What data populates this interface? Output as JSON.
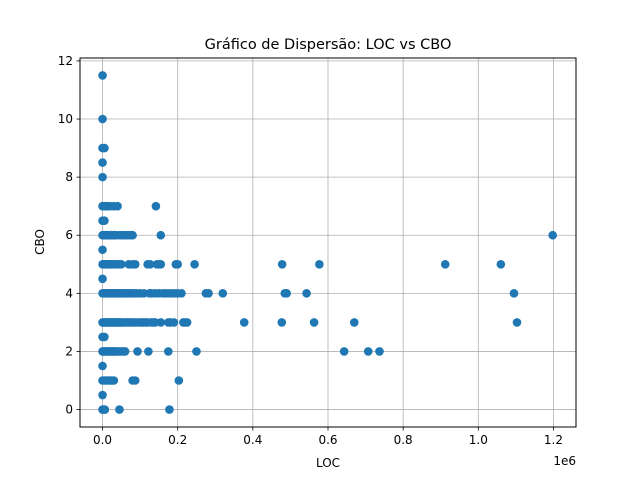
{
  "chart_data": {
    "type": "scatter",
    "title": "Gráfico de Dispersão: LOC vs CBO",
    "xlabel": "LOC",
    "ylabel": "CBO",
    "x_offset_label": "1e6",
    "xlim": [
      -60000,
      1260000
    ],
    "ylim": [
      -0.6,
      12.1
    ],
    "x_ticks": [
      0,
      200000,
      400000,
      600000,
      800000,
      1000000,
      1200000
    ],
    "x_tick_labels": [
      "0.0",
      "0.2",
      "0.4",
      "0.6",
      "0.8",
      "1.0",
      "1.2"
    ],
    "y_ticks": [
      0,
      2,
      4,
      6,
      8,
      10,
      12
    ],
    "y_tick_labels": [
      "0",
      "2",
      "4",
      "6",
      "8",
      "10",
      "12"
    ],
    "grid": true,
    "marker_color": "#1f77b4",
    "points": [
      [
        0,
        11.5
      ],
      [
        0,
        10
      ],
      [
        0,
        9
      ],
      [
        5000,
        9
      ],
      [
        0,
        8.5
      ],
      [
        0,
        8
      ],
      [
        0,
        7
      ],
      [
        5000,
        7
      ],
      [
        10000,
        7
      ],
      [
        15000,
        7
      ],
      [
        20000,
        7
      ],
      [
        30000,
        7
      ],
      [
        40000,
        7
      ],
      [
        142000,
        7
      ],
      [
        0,
        6.5
      ],
      [
        5000,
        6.5
      ],
      [
        0,
        5.5
      ],
      [
        0,
        4.5
      ],
      [
        0,
        2.5
      ],
      [
        5000,
        2.5
      ],
      [
        0,
        1.5
      ],
      [
        0,
        0.5
      ],
      [
        0,
        6
      ],
      [
        3000,
        6
      ],
      [
        6000,
        6
      ],
      [
        9000,
        6
      ],
      [
        12000,
        6
      ],
      [
        15000,
        6
      ],
      [
        18000,
        6
      ],
      [
        21000,
        6
      ],
      [
        24000,
        6
      ],
      [
        27000,
        6
      ],
      [
        30000,
        6
      ],
      [
        33000,
        6
      ],
      [
        36000,
        6
      ],
      [
        45000,
        6
      ],
      [
        50000,
        6
      ],
      [
        55000,
        6
      ],
      [
        62000,
        6
      ],
      [
        68000,
        6
      ],
      [
        75000,
        6
      ],
      [
        80000,
        6
      ],
      [
        155000,
        6
      ],
      [
        1198000,
        6
      ],
      [
        0,
        5
      ],
      [
        3000,
        5
      ],
      [
        6000,
        5
      ],
      [
        9000,
        5
      ],
      [
        12000,
        5
      ],
      [
        15000,
        5
      ],
      [
        18000,
        5
      ],
      [
        21000,
        5
      ],
      [
        24000,
        5
      ],
      [
        27000,
        5
      ],
      [
        30000,
        5
      ],
      [
        35000,
        5
      ],
      [
        40000,
        5
      ],
      [
        45000,
        5
      ],
      [
        50000,
        5
      ],
      [
        70000,
        5
      ],
      [
        80000,
        5
      ],
      [
        87000,
        5
      ],
      [
        120000,
        5
      ],
      [
        127000,
        5
      ],
      [
        145000,
        5
      ],
      [
        150000,
        5
      ],
      [
        155000,
        5
      ],
      [
        195000,
        5
      ],
      [
        200000,
        5
      ],
      [
        245000,
        5
      ],
      [
        478000,
        5
      ],
      [
        577000,
        5
      ],
      [
        912000,
        5
      ],
      [
        1060000,
        5
      ],
      [
        0,
        4
      ],
      [
        3000,
        4
      ],
      [
        6000,
        4
      ],
      [
        9000,
        4
      ],
      [
        12000,
        4
      ],
      [
        15000,
        4
      ],
      [
        18000,
        4
      ],
      [
        21000,
        4
      ],
      [
        24000,
        4
      ],
      [
        27000,
        4
      ],
      [
        30000,
        4
      ],
      [
        33000,
        4
      ],
      [
        36000,
        4
      ],
      [
        39000,
        4
      ],
      [
        42000,
        4
      ],
      [
        45000,
        4
      ],
      [
        48000,
        4
      ],
      [
        51000,
        4
      ],
      [
        55000,
        4
      ],
      [
        60000,
        4
      ],
      [
        65000,
        4
      ],
      [
        70000,
        4
      ],
      [
        75000,
        4
      ],
      [
        80000,
        4
      ],
      [
        85000,
        4
      ],
      [
        92000,
        4
      ],
      [
        100000,
        4
      ],
      [
        110000,
        4
      ],
      [
        125000,
        4
      ],
      [
        130000,
        4
      ],
      [
        140000,
        4
      ],
      [
        150000,
        4
      ],
      [
        160000,
        4
      ],
      [
        168000,
        4
      ],
      [
        175000,
        4
      ],
      [
        183000,
        4
      ],
      [
        192000,
        4
      ],
      [
        200000,
        4
      ],
      [
        210000,
        4
      ],
      [
        275000,
        4
      ],
      [
        282000,
        4
      ],
      [
        320000,
        4
      ],
      [
        485000,
        4
      ],
      [
        490000,
        4
      ],
      [
        543000,
        4
      ],
      [
        1095000,
        4
      ],
      [
        0,
        3
      ],
      [
        3000,
        3
      ],
      [
        6000,
        3
      ],
      [
        9000,
        3
      ],
      [
        12000,
        3
      ],
      [
        15000,
        3
      ],
      [
        18000,
        3
      ],
      [
        21000,
        3
      ],
      [
        24000,
        3
      ],
      [
        27000,
        3
      ],
      [
        30000,
        3
      ],
      [
        33000,
        3
      ],
      [
        36000,
        3
      ],
      [
        39000,
        3
      ],
      [
        42000,
        3
      ],
      [
        45000,
        3
      ],
      [
        48000,
        3
      ],
      [
        51000,
        3
      ],
      [
        55000,
        3
      ],
      [
        60000,
        3
      ],
      [
        65000,
        3
      ],
      [
        70000,
        3
      ],
      [
        75000,
        3
      ],
      [
        80000,
        3
      ],
      [
        85000,
        3
      ],
      [
        92000,
        3
      ],
      [
        100000,
        3
      ],
      [
        105000,
        3
      ],
      [
        110000,
        3
      ],
      [
        115000,
        3
      ],
      [
        120000,
        3
      ],
      [
        130000,
        3
      ],
      [
        135000,
        3
      ],
      [
        140000,
        3
      ],
      [
        155000,
        3
      ],
      [
        175000,
        3
      ],
      [
        180000,
        3
      ],
      [
        190000,
        3
      ],
      [
        215000,
        3
      ],
      [
        220000,
        3
      ],
      [
        225000,
        3
      ],
      [
        377000,
        3
      ],
      [
        477000,
        3
      ],
      [
        563000,
        3
      ],
      [
        670000,
        3
      ],
      [
        1103000,
        3
      ],
      [
        0,
        2
      ],
      [
        3000,
        2
      ],
      [
        6000,
        2
      ],
      [
        9000,
        2
      ],
      [
        12000,
        2
      ],
      [
        15000,
        2
      ],
      [
        18000,
        2
      ],
      [
        21000,
        2
      ],
      [
        24000,
        2
      ],
      [
        27000,
        2
      ],
      [
        30000,
        2
      ],
      [
        33000,
        2
      ],
      [
        36000,
        2
      ],
      [
        40000,
        2
      ],
      [
        45000,
        2
      ],
      [
        50000,
        2
      ],
      [
        55000,
        2
      ],
      [
        60000,
        2
      ],
      [
        93000,
        2
      ],
      [
        122000,
        2
      ],
      [
        175000,
        2
      ],
      [
        250000,
        2
      ],
      [
        643000,
        2
      ],
      [
        707000,
        2
      ],
      [
        737000,
        2
      ],
      [
        0,
        1
      ],
      [
        5000,
        1
      ],
      [
        10000,
        1
      ],
      [
        15000,
        1
      ],
      [
        20000,
        1
      ],
      [
        25000,
        1
      ],
      [
        30000,
        1
      ],
      [
        80000,
        1
      ],
      [
        87000,
        1
      ],
      [
        203000,
        1
      ],
      [
        0,
        0
      ],
      [
        3000,
        0
      ],
      [
        6000,
        0
      ],
      [
        45000,
        0
      ],
      [
        178000,
        0
      ]
    ]
  }
}
